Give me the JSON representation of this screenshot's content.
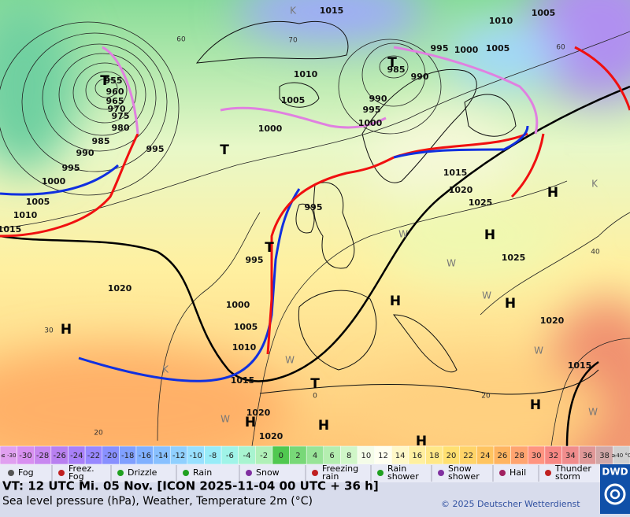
{
  "map": {
    "pressure_labels": [
      "1015",
      "1005",
      "1010",
      "995",
      "1000",
      "1005",
      "985",
      "990",
      "990",
      "995",
      "1000",
      "1010",
      "1005",
      "1000",
      "955",
      "960",
      "965",
      "970",
      "975",
      "980",
      "985",
      "990",
      "995",
      "1000",
      "995",
      "1005",
      "1010",
      "1015",
      "995",
      "1015",
      "1020",
      "1025",
      "1025",
      "995",
      "1000",
      "1005",
      "1010",
      "1015",
      "1020",
      "1020",
      "1015",
      "1020",
      "1020"
    ],
    "isotherm_labels": [
      "60",
      "70",
      "60",
      "40",
      "30",
      "20",
      "0",
      "20"
    ],
    "pressure_centers": [
      "T",
      "T",
      "T",
      "T",
      "T",
      "H",
      "H",
      "H",
      "H",
      "H",
      "H",
      "H",
      "H",
      "H"
    ],
    "temperature_marks": [
      "K",
      "K",
      "K",
      "W",
      "W",
      "W",
      "W",
      "W",
      "W",
      "W"
    ]
  },
  "color_scale": {
    "labels": [
      "≤ -30",
      "-30",
      "-28",
      "-26",
      "-24",
      "-22",
      "-20",
      "-18",
      "-16",
      "-14",
      "-12",
      "-10",
      "-8",
      "-6",
      "-4",
      "-2",
      "0",
      "2",
      "4",
      "6",
      "8",
      "10",
      "12",
      "14",
      "16",
      "18",
      "20",
      "22",
      "24",
      "26",
      "28",
      "30",
      "32",
      "34",
      "36",
      "38",
      "≥40 °C"
    ],
    "colors": [
      "#e0a0f0",
      "#d890f0",
      "#c888f0",
      "#b880f0",
      "#a880f8",
      "#9888ff",
      "#8890ff",
      "#80a0ff",
      "#80b0ff",
      "#88c0ff",
      "#90d0ff",
      "#98e0ff",
      "#98ecf8",
      "#a0f4e8",
      "#a8f4d0",
      "#b0f0b8",
      "#50c850",
      "#78d878",
      "#98e498",
      "#b4eeb0",
      "#d0f6c8",
      "#f4fce8",
      "#fffff0",
      "#fff8c8",
      "#fff0a0",
      "#ffe888",
      "#ffe070",
      "#ffd468",
      "#ffc460",
      "#ffb460",
      "#ffa470",
      "#ff9480",
      "#f88884",
      "#f08c8c",
      "#e09898",
      "#d0a8a8",
      "#d0d0d0"
    ]
  },
  "legend": [
    "Fog",
    "Freez.\nFog",
    "Drizzle",
    "Rain",
    "Snow",
    "Freezing\nrain",
    "Rain\nshower",
    "Snow\nshower",
    "Hail",
    "Thunder\nstorm"
  ],
  "info": {
    "valid_time": "VT: 12 UTC Mi.  05 Nov. [ICON 2025-11-04  00 UTC + 36 h]",
    "description": "Sea level pressure (hPa), Weather, Temperature 2m (°C)",
    "copyright": "© 2025 Deutscher Wetterdienst",
    "logo": "DWD"
  }
}
